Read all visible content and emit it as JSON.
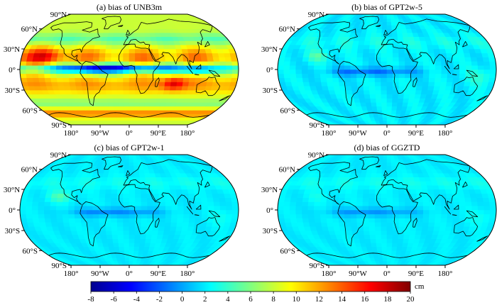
{
  "panels": [
    {
      "title": "(a) bias of UNB3m",
      "variant": "unb3m"
    },
    {
      "title": "(b) bias of GPT2w-5",
      "variant": "gpt5"
    },
    {
      "title": "(c) bias of GPT2w-1",
      "variant": "gpt1"
    },
    {
      "title": "(d) bias of GGZTD",
      "variant": "ggztd"
    }
  ],
  "lat_labels": [
    "90°N",
    "60°N",
    "30°N",
    "0°",
    "30°S",
    "60°S",
    "90°S"
  ],
  "lon_labels": [
    "180°",
    "90°W",
    "0°",
    "90°E",
    "180°"
  ],
  "colorbar": {
    "min": -8,
    "max": 20,
    "ticks": [
      "-8",
      "-6",
      "-4",
      "-2",
      "0",
      "2",
      "4",
      "6",
      "8",
      "10",
      "12",
      "14",
      "16",
      "18",
      "20"
    ],
    "unit": "cm",
    "colors": [
      "#00008f",
      "#0000ff",
      "#0080ff",
      "#00ffff",
      "#80ff80",
      "#ffff00",
      "#ff8000",
      "#ff0000",
      "#800000"
    ]
  }
}
